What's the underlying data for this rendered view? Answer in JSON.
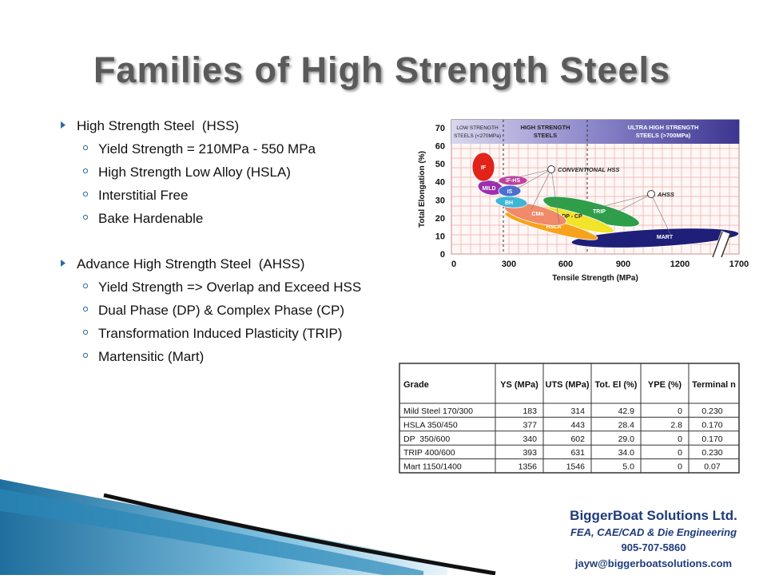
{
  "title": "Families of High Strength Steels",
  "bullets": [
    {
      "text": "High Strength Steel  (HSS)",
      "items": [
        "Yield Strength = 210MPa - 550 MPa",
        "High Strength Low Alloy (HSLA)",
        "Interstitial Free",
        "Bake Hardenable"
      ]
    },
    {
      "text": "Advance High Strength Steel  (AHSS)",
      "items": [
        "Yield Strength => Overlap and Exceed HSS",
        "Dual Phase (DP) & Complex Phase (CP)",
        "Transformation Induced Plasticity (TRIP)",
        "Martensitic (Mart)"
      ]
    }
  ],
  "diagram": {
    "y_axis_label": "Total Elongation (%)",
    "x_axis_label": "Tensile Strength (MPa)",
    "yticks": [
      "0",
      "10",
      "20",
      "30",
      "40",
      "50",
      "60",
      "70"
    ],
    "xticks": [
      "0",
      "300",
      "600",
      "900",
      "1200",
      "1700"
    ],
    "bands": [
      [
        "LOW STRENGTH",
        "STEELS (<270MPa)"
      ],
      [
        "HIGH STRENGTH",
        "STEELS"
      ],
      [
        "ULTRA HIGH STRENGTH",
        "STEELS (>700MPa)"
      ]
    ],
    "regions": [
      "MART",
      "TRIP",
      "DP - CP",
      "HSLA",
      "CMn",
      "BH",
      "MILD",
      "IS",
      "IF-HS",
      "IF"
    ],
    "callouts": [
      "CONVENTIONAL HSS",
      "AHSS"
    ]
  },
  "table": {
    "header": [
      "Grade",
      "YS (MPa)",
      "UTS (MPa)",
      "Tot. El (%)",
      "YPE (%)",
      "Terminal n"
    ],
    "rows": [
      [
        "Mild Steel 170/300",
        "183",
        "314",
        "42.9",
        "0",
        "0.230"
      ],
      [
        "HSLA 350/450",
        "377",
        "443",
        "28.4",
        "2.8",
        "0.170"
      ],
      [
        "DP  350/600",
        "340",
        "602",
        "29.0",
        "0",
        "0.170"
      ],
      [
        "TRIP 400/600",
        "393",
        "631",
        "34.0",
        "0",
        "0.230"
      ],
      [
        "Mart 1150/1400",
        "1356",
        "1546",
        "5.0",
        "0",
        "0.07"
      ]
    ]
  },
  "footer": {
    "company": "BiggerBoat Solutions Ltd.",
    "tagline": "FEA, CAE/CAD & Die Engineering",
    "phone": "905-707-5860",
    "email": "jayw@biggerboatsolutions.com"
  }
}
